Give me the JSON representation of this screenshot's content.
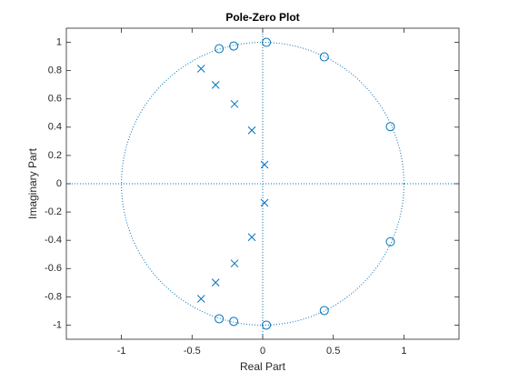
{
  "chart_data": {
    "type": "scatter",
    "title": "Pole-Zero Plot",
    "xlabel": "Real Part",
    "ylabel": "Imaginary Part",
    "xlim": [
      -1.39,
      1.39
    ],
    "ylim": [
      -1.1,
      1.1
    ],
    "xticks": [
      -1,
      -0.5,
      0,
      0.5,
      1
    ],
    "yticks": [
      -1,
      -0.8,
      -0.6,
      -0.4,
      -0.2,
      0,
      0.2,
      0.4,
      0.6,
      0.8,
      1
    ],
    "color": "#0072bd",
    "series": [
      {
        "marker": "o",
        "x": [
          0.026,
          -0.205,
          -0.308,
          0.436,
          0.904,
          0.904,
          0.436,
          -0.205,
          -0.308,
          0.026
        ],
        "y": [
          1.0,
          0.974,
          0.955,
          0.897,
          0.404,
          -0.41,
          -0.897,
          -0.974,
          -0.955,
          -1.0
        ]
      },
      {
        "marker": "x",
        "x": [
          -0.436,
          -0.333,
          -0.199,
          -0.077,
          0.013,
          0.013,
          -0.077,
          -0.199,
          -0.333,
          -0.436
        ],
        "y": [
          0.814,
          0.699,
          0.564,
          0.378,
          0.135,
          -0.135,
          -0.378,
          -0.564,
          -0.699,
          -0.814
        ]
      }
    ]
  }
}
